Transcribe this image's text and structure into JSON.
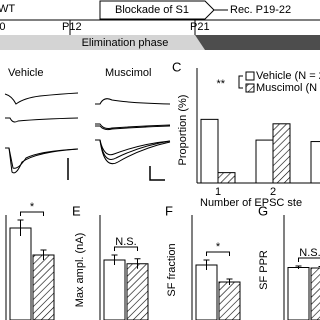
{
  "timeline": {
    "wt": "WT",
    "blockade": "Blockade of S1",
    "recording": "Rec. P19-22",
    "p0": "P0",
    "p12": "P12",
    "p21": "P21",
    "phase": "Elimination phase"
  },
  "traces": {
    "vehicle": "Vehicle",
    "muscimol": "Muscimol"
  },
  "chart_data": [
    {
      "type": "bar",
      "panel": "C",
      "ylabel": "Proportion (%)",
      "xlabel": "Number of EPSC ste",
      "categories": [
        "1",
        "2",
        "≥3"
      ],
      "series": [
        {
          "name": "Vehicle (N = 28)",
          "color": "#ffffff",
          "hatch": false,
          "values": [
            43,
            29,
            28
          ]
        },
        {
          "name": "Muscimol (N = 2",
          "color": "#ffffff",
          "hatch": true,
          "values": [
            7,
            40,
            53
          ]
        }
      ],
      "ylim": [
        0,
        75
      ],
      "annotation": "**"
    },
    {
      "type": "bar",
      "values": [
        0.92,
        0.65
      ],
      "errors": [
        0.08,
        0.05
      ],
      "hatch": [
        false,
        true
      ],
      "color": "#ffffff",
      "ylim": [
        0,
        1
      ],
      "annotation": "*"
    },
    {
      "type": "bar",
      "panel": "E",
      "ylabel": "Max ampl. (nA)",
      "values": [
        2.4,
        2.25
      ],
      "errors": [
        0.2,
        0.2
      ],
      "hatch": [
        false,
        true
      ],
      "color": "#ffffff",
      "ylim": [
        0,
        4
      ],
      "annotation": "N.S."
    },
    {
      "type": "bar",
      "panel": "F",
      "ylabel": "SF fraction",
      "values": [
        0.55,
        0.38
      ],
      "errors": [
        0.05,
        0.03
      ],
      "hatch": [
        false,
        true
      ],
      "color": "#ffffff",
      "ylim": [
        0,
        1
      ],
      "annotation": "*"
    },
    {
      "type": "bar",
      "panel": "G",
      "ylabel": "SF PPR",
      "values": [
        1.05,
        1.04
      ],
      "errors": [
        0.03,
        0.03
      ],
      "hatch": [
        false,
        true
      ],
      "color": "#ffffff",
      "ylim": [
        0,
        2
      ],
      "annotation": "N.S."
    }
  ]
}
